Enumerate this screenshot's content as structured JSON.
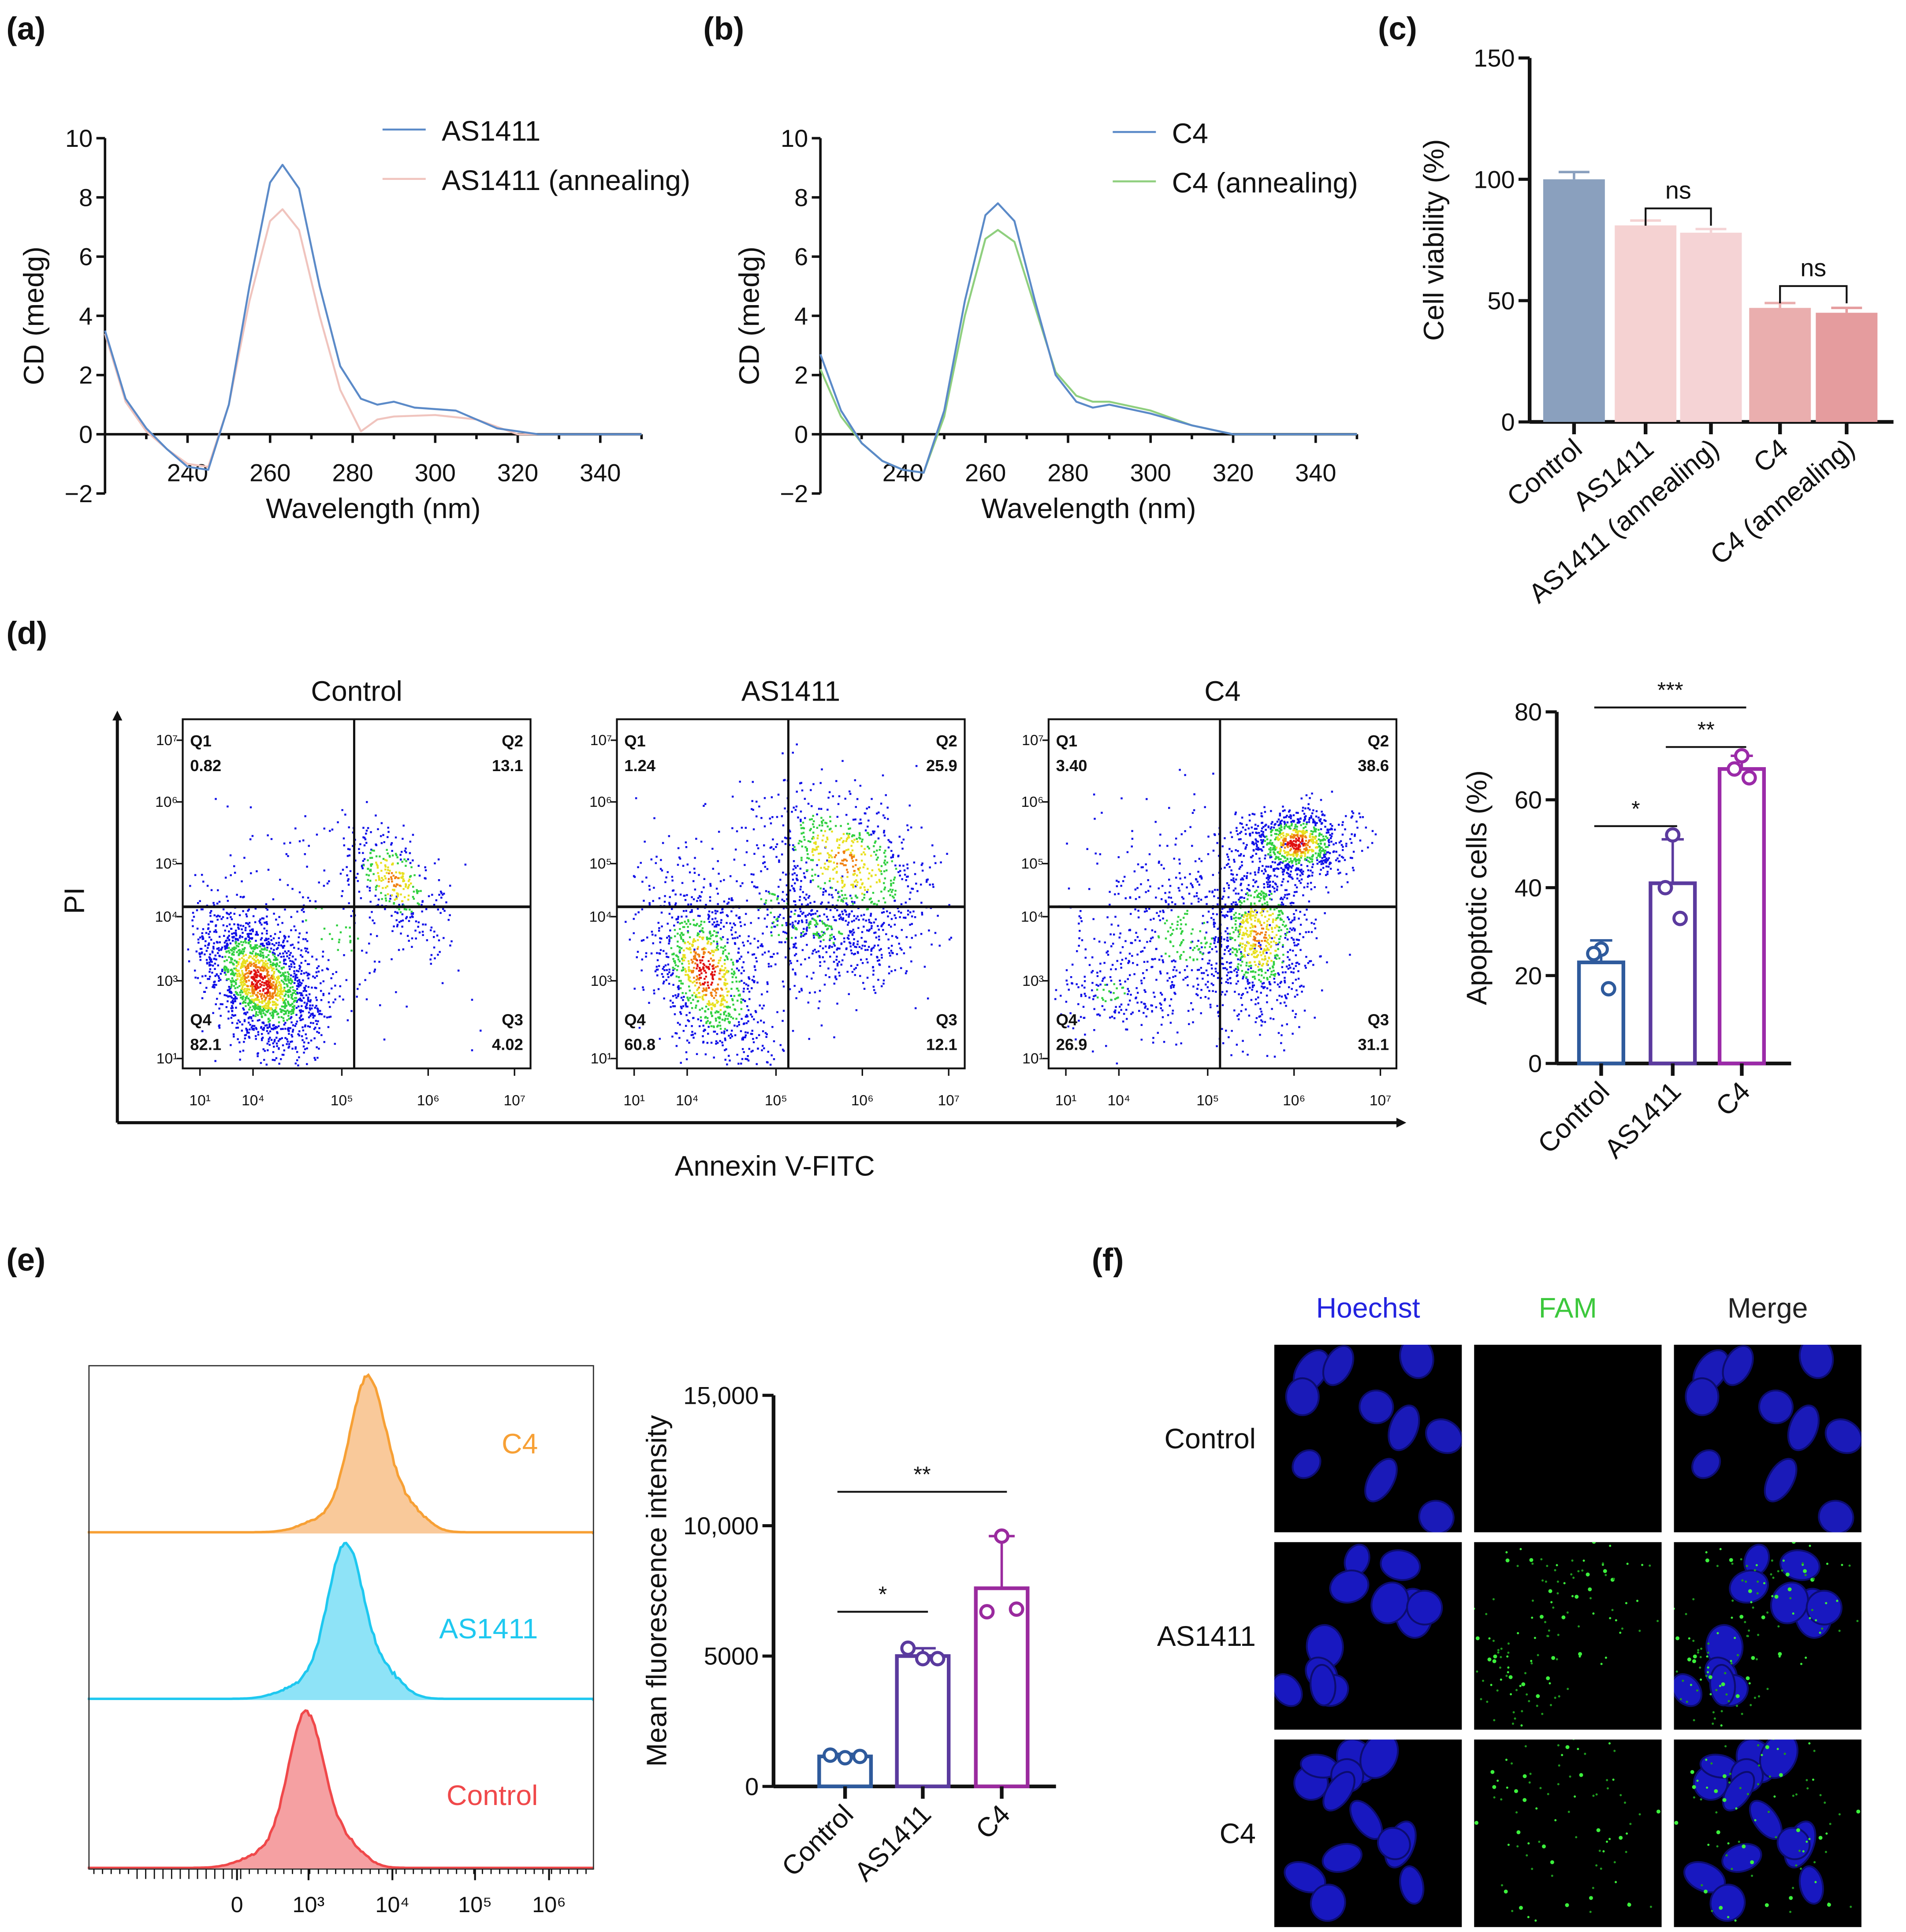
{
  "panel_labels": [
    "(a)",
    "(b)",
    "(c)",
    "(d)",
    "(e)",
    "(f)"
  ],
  "chart_data": [
    {
      "type": "line",
      "title": "",
      "xlabel": "Wavelength (nm)",
      "ylabel": "CD (medg)",
      "xlim": [
        220,
        350
      ],
      "ylim": [
        -2,
        10
      ],
      "xticks": [
        240,
        260,
        280,
        300,
        320,
        340
      ],
      "yticks": [
        -2,
        0,
        2,
        4,
        6,
        8,
        10
      ],
      "ytick_labels": [
        "−2",
        "0",
        "2",
        "4",
        "6",
        "8",
        "10"
      ],
      "legend_position": "top-right",
      "series": [
        {
          "name": "AS1411",
          "color": "#5b8ac8",
          "x": [
            220,
            225,
            230,
            235,
            240,
            245,
            250,
            255,
            260,
            263,
            267,
            272,
            277,
            282,
            286,
            290,
            295,
            305,
            315,
            325,
            350
          ],
          "y": [
            3.5,
            1.2,
            0.2,
            -0.5,
            -1.1,
            -1.2,
            1.0,
            5.0,
            8.5,
            9.1,
            8.3,
            5.0,
            2.3,
            1.2,
            1.0,
            1.1,
            0.9,
            0.8,
            0.2,
            0.0,
            0.0
          ]
        },
        {
          "name": "AS1411 (annealing)",
          "color": "#f0c4be",
          "x": [
            220,
            225,
            230,
            235,
            240,
            245,
            250,
            255,
            260,
            263,
            267,
            272,
            277,
            282,
            286,
            290,
            300,
            310,
            320,
            350
          ],
          "y": [
            3.4,
            1.1,
            0.1,
            -0.5,
            -1.0,
            -1.1,
            1.0,
            4.5,
            7.2,
            7.6,
            6.9,
            4.0,
            1.5,
            0.1,
            0.5,
            0.6,
            0.65,
            0.5,
            0.0,
            0.0
          ]
        }
      ]
    },
    {
      "type": "line",
      "title": "",
      "xlabel": "Wavelength (nm)",
      "ylabel": "CD (medg)",
      "xlim": [
        220,
        350
      ],
      "ylim": [
        -2,
        10
      ],
      "xticks": [
        240,
        260,
        280,
        300,
        320,
        340
      ],
      "yticks": [
        -2,
        0,
        2,
        4,
        6,
        8,
        10
      ],
      "ytick_labels": [
        "−2",
        "0",
        "2",
        "4",
        "6",
        "8",
        "10"
      ],
      "legend_position": "top-right",
      "series": [
        {
          "name": "C4",
          "color": "#5b8ac8",
          "x": [
            220,
            225,
            230,
            235,
            240,
            245,
            250,
            255,
            260,
            263,
            267,
            272,
            277,
            282,
            286,
            290,
            300,
            310,
            320,
            350
          ],
          "y": [
            2.7,
            0.8,
            -0.3,
            -0.9,
            -1.2,
            -1.3,
            0.8,
            4.5,
            7.4,
            7.8,
            7.2,
            4.5,
            2.0,
            1.1,
            0.9,
            1.0,
            0.7,
            0.3,
            0.0,
            0.0
          ]
        },
        {
          "name": "C4 (annealing)",
          "color": "#8fcf7e",
          "x": [
            220,
            225,
            230,
            235,
            240,
            245,
            250,
            255,
            260,
            263,
            267,
            272,
            277,
            282,
            286,
            290,
            300,
            310,
            320,
            350
          ],
          "y": [
            2.2,
            0.6,
            -0.3,
            -0.9,
            -1.2,
            -1.3,
            0.6,
            4.0,
            6.6,
            6.9,
            6.5,
            4.3,
            2.1,
            1.3,
            1.1,
            1.1,
            0.8,
            0.3,
            0.0,
            0.0
          ]
        }
      ]
    },
    {
      "type": "bar",
      "ylabel": "Cell viability (%)",
      "ylim": [
        0,
        150
      ],
      "yticks": [
        0,
        50,
        100,
        150
      ],
      "ytick_labels": [
        "0",
        "50",
        "100",
        "150"
      ],
      "categories": [
        "Control",
        "AS1411",
        "AS1411 (annealing)",
        "C4",
        "C4 (annealing)"
      ],
      "values": [
        100,
        81,
        78,
        47,
        45
      ],
      "errors": [
        3,
        2,
        1.5,
        2,
        2
      ],
      "colors": [
        "#8aa0be",
        "#f5d2d2",
        "#f5d3d5",
        "#eaaeae",
        "#e59c9e"
      ],
      "significance": [
        {
          "from": 1,
          "to": 2,
          "label": "ns",
          "level": 88
        },
        {
          "from": 3,
          "to": 4,
          "label": "ns",
          "level": 56
        }
      ]
    },
    {
      "type": "scatter",
      "xlabel": "Annexin V-FITC",
      "ylabel": "PI",
      "x_tick_labels": [
        "10¹",
        "10⁴",
        "10⁵",
        "10⁶",
        "10⁷"
      ],
      "y_tick_labels": [
        "10⁷",
        "10⁶",
        "10⁵",
        "10⁴",
        "10³",
        "10¹"
      ],
      "plots": [
        {
          "title": "Control",
          "Q1": "0.82",
          "Q2": "13.1",
          "Q3": "4.02",
          "Q4": "82.1"
        },
        {
          "title": "AS1411",
          "Q1": "1.24",
          "Q2": "25.9",
          "Q3": "12.1",
          "Q4": "60.8"
        },
        {
          "title": "C4",
          "Q1": "3.40",
          "Q2": "38.6",
          "Q3": "31.1",
          "Q4": "26.9"
        }
      ],
      "quadrant_names": [
        "Q1",
        "Q2",
        "Q3",
        "Q4"
      ]
    },
    {
      "type": "bar",
      "ylabel": "Apoptotic cells (%)",
      "ylim": [
        0,
        80
      ],
      "yticks": [
        0,
        20,
        40,
        60,
        80
      ],
      "ytick_labels": [
        "0",
        "20",
        "40",
        "60",
        "80"
      ],
      "categories": [
        "Control",
        "AS1411",
        "C4"
      ],
      "values": [
        23,
        41,
        67
      ],
      "errors": [
        5,
        10,
        3
      ],
      "points": [
        [
          26,
          25,
          17
        ],
        [
          52,
          40,
          33
        ],
        [
          70,
          67,
          65
        ]
      ],
      "colors": [
        "#2e5a9c",
        "#5b3a9e",
        "#9b2aa8"
      ],
      "significance": [
        {
          "from": 0,
          "to": 1,
          "label": "*",
          "level": 54
        },
        {
          "from": 1,
          "to": 2,
          "label": "**",
          "level": 72
        },
        {
          "from": 0,
          "to": 2,
          "label": "***",
          "level": 81
        }
      ]
    },
    {
      "type": "area",
      "xlabel": "",
      "x_tick_labels": [
        "0",
        "10³",
        "10⁴",
        "10⁵",
        "10⁶"
      ],
      "series": [
        {
          "name": "C4",
          "color": "#f7a035",
          "fill": "#f9c99a",
          "peak_log10": 3.72
        },
        {
          "name": "AS1411",
          "color": "#1ec8f0",
          "fill": "#8ee3f7",
          "peak_log10": 3.45
        },
        {
          "name": "Control",
          "color": "#f0484a",
          "fill": "#f5a0a2",
          "peak_log10": 2.97
        }
      ]
    },
    {
      "type": "bar",
      "ylabel": "Mean fluorescence intensity",
      "ylim": [
        0,
        15000
      ],
      "yticks": [
        0,
        5000,
        10000,
        15000
      ],
      "ytick_labels": [
        "0",
        "5000",
        "10,000",
        "15,000"
      ],
      "categories": [
        "Control",
        "AS1411",
        "C4"
      ],
      "values": [
        1150,
        5000,
        7600
      ],
      "errors": [
        100,
        300,
        2000
      ],
      "points": [
        [
          1100,
          1200,
          1150
        ],
        [
          4900,
          5300,
          4900
        ],
        [
          9600,
          6700,
          6800
        ]
      ],
      "colors": [
        "#2e5a9c",
        "#5a3a9e",
        "#9a2a9e"
      ],
      "significance": [
        {
          "from": 0,
          "to": 1,
          "label": "*",
          "level": 6700
        },
        {
          "from": 0,
          "to": 2,
          "label": "**",
          "level": 11300
        }
      ]
    }
  ],
  "microscopy": {
    "columns": [
      {
        "label": "Hoechst",
        "color": "#2323e0"
      },
      {
        "label": "FAM",
        "color": "#3cc83c"
      },
      {
        "label": "Merge",
        "color": "#222222"
      }
    ],
    "rows": [
      "Control",
      "AS1411",
      "C4"
    ]
  }
}
